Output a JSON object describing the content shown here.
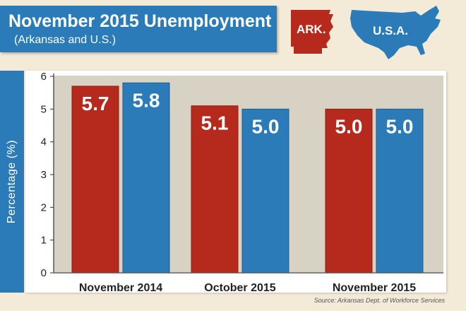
{
  "header": {
    "title": "November 2015 Unemployment",
    "subtitle": "(Arkansas and U.S.)"
  },
  "maps": {
    "arkansas_label": "ARK.",
    "usa_label": "U.S.A.",
    "arkansas_icon": "arkansas-state-shape-icon",
    "usa_icon": "usa-map-shape-icon"
  },
  "source": "Source: Arkansas Dept. of Workforce Services",
  "colors": {
    "arkansas": "#b52a1c",
    "usa": "#2a7bb7",
    "banner": "#2a7bb7"
  },
  "chart_data": {
    "type": "bar",
    "categories": [
      "November 2014",
      "October 2015",
      "November 2015"
    ],
    "series": [
      {
        "name": "ARK.",
        "values": [
          5.7,
          5.1,
          5.0
        ],
        "labels": [
          "5.7",
          "5.1",
          "5.0"
        ]
      },
      {
        "name": "U.S.A.",
        "values": [
          5.8,
          5.0,
          5.0
        ],
        "labels": [
          "5.8",
          "5.0",
          "5.0"
        ]
      }
    ],
    "ylabel": "Percentage (%)",
    "xlabel": "",
    "ylim": [
      0,
      6
    ],
    "yticks": [
      "0",
      "1",
      "2",
      "3",
      "4",
      "5",
      "6"
    ],
    "grid": false,
    "legend": "top-right"
  }
}
